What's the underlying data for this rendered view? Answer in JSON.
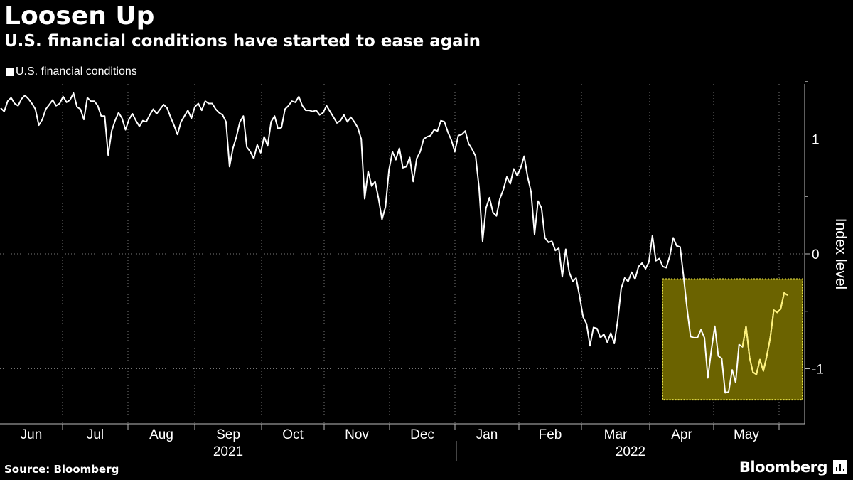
{
  "title": "Loosen Up",
  "subtitle": "U.S. financial conditions have started to ease again",
  "source": "Source: Bloomberg",
  "brand": "Bloomberg",
  "chart_data": {
    "type": "line",
    "ylabel": "Index level",
    "ylim": [
      -1.48,
      1.48
    ],
    "yticks": [
      1,
      0,
      -1
    ],
    "ytick_labels": [
      "1",
      "0",
      "-1"
    ],
    "grid": "dotted vertical and horizontal",
    "legend_position": "top-left",
    "month_labels": [
      "Jun",
      "Jul",
      "Aug",
      "Sep",
      "Oct",
      "Nov",
      "Dec",
      "Jan",
      "Feb",
      "Mar",
      "Apr",
      "May"
    ],
    "year_labels": [
      "2021",
      "2022"
    ],
    "colors": {
      "line": "#ffffff",
      "highlight_fill": "#6b6300",
      "highlight_border": "#e8e34a",
      "highlighted_line": "#fff27a"
    },
    "series": [
      {
        "name": "U.S. financial conditions",
        "values": [
          1.27,
          1.24,
          1.33,
          1.36,
          1.31,
          1.29,
          1.35,
          1.38,
          1.35,
          1.31,
          1.26,
          1.12,
          1.17,
          1.26,
          1.3,
          1.34,
          1.29,
          1.31,
          1.37,
          1.32,
          1.34,
          1.4,
          1.28,
          1.26,
          1.17,
          1.36,
          1.33,
          1.33,
          1.29,
          1.2,
          1.2,
          0.86,
          1.07,
          1.16,
          1.23,
          1.18,
          1.08,
          1.17,
          1.22,
          1.16,
          1.11,
          1.16,
          1.15,
          1.21,
          1.26,
          1.22,
          1.26,
          1.3,
          1.27,
          1.19,
          1.12,
          1.04,
          1.15,
          1.2,
          1.25,
          1.18,
          1.28,
          1.31,
          1.25,
          1.33,
          1.31,
          1.31,
          1.26,
          1.23,
          1.21,
          1.15,
          0.76,
          0.92,
          1.02,
          1.15,
          1.2,
          0.93,
          0.89,
          0.83,
          0.95,
          0.88,
          1.02,
          0.94,
          1.15,
          1.2,
          1.09,
          1.1,
          1.26,
          1.29,
          1.33,
          1.32,
          1.37,
          1.29,
          1.25,
          1.25,
          1.24,
          1.25,
          1.21,
          1.23,
          1.29,
          1.24,
          1.19,
          1.14,
          1.16,
          1.21,
          1.15,
          1.19,
          1.15,
          1.1,
          1.0,
          0.48,
          0.72,
          0.59,
          0.63,
          0.48,
          0.3,
          0.41,
          0.73,
          0.89,
          0.82,
          0.92,
          0.75,
          0.76,
          0.84,
          0.63,
          0.83,
          0.89,
          1.0,
          1.02,
          1.03,
          1.08,
          1.07,
          1.16,
          1.15,
          1.06,
          0.99,
          0.89,
          1.03,
          1.04,
          1.07,
          0.96,
          0.91,
          0.85,
          0.57,
          0.11,
          0.4,
          0.49,
          0.36,
          0.33,
          0.48,
          0.56,
          0.67,
          0.61,
          0.74,
          0.68,
          0.75,
          0.85,
          0.67,
          0.54,
          0.17,
          0.46,
          0.4,
          0.14,
          0.1,
          0.11,
          0.03,
          0.05,
          -0.2,
          0.04,
          -0.16,
          -0.24,
          -0.21,
          -0.37,
          -0.55,
          -0.61,
          -0.8,
          -0.64,
          -0.65,
          -0.73,
          -0.7,
          -0.77,
          -0.69,
          -0.78,
          -0.58,
          -0.3,
          -0.21,
          -0.24,
          -0.16,
          -0.22,
          -0.11,
          -0.08,
          -0.13,
          -0.07,
          0.16,
          -0.06,
          -0.04,
          -0.11,
          -0.12,
          -0.02,
          0.14,
          0.07,
          0.06,
          -0.2,
          -0.48,
          -0.72,
          -0.73,
          -0.73,
          -0.66,
          -0.73,
          -1.08,
          -0.84,
          -0.63,
          -0.89,
          -0.91,
          -1.21,
          -1.2,
          -1.01,
          -1.12,
          -0.79,
          -0.81,
          -0.63,
          -0.9,
          -1.03,
          -1.05,
          -0.92,
          -1.02,
          -0.89,
          -0.73,
          -0.49,
          -0.51,
          -0.48,
          -0.34,
          -0.36
        ]
      }
    ],
    "highlight": {
      "x_from_index": 214,
      "x_to_index": 249,
      "y_from": -1.27,
      "y_to": -0.22
    }
  }
}
